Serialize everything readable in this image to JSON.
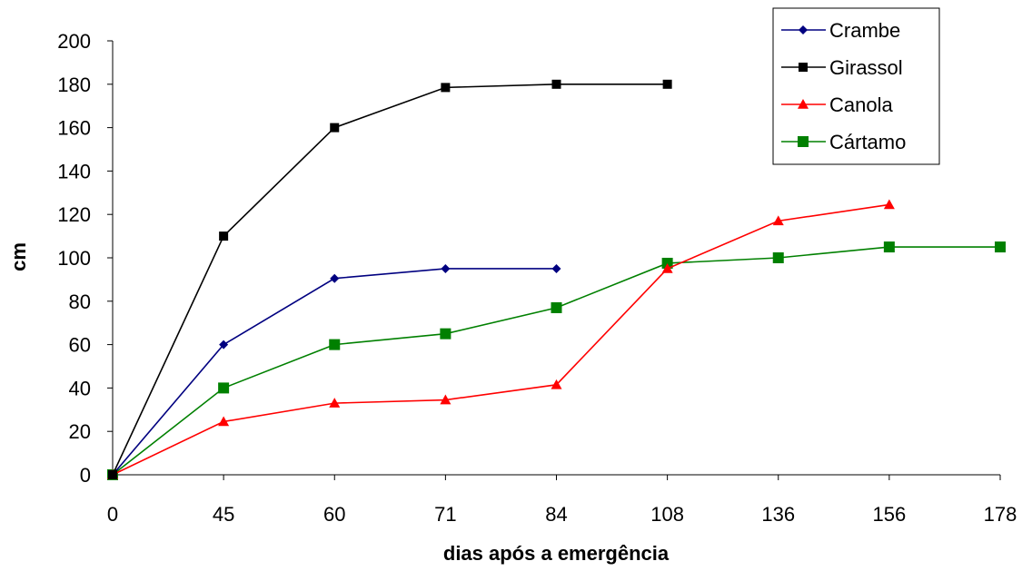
{
  "chart_data": {
    "type": "line",
    "categories": [
      "0",
      "45",
      "60",
      "71",
      "84",
      "108",
      "136",
      "156",
      "178"
    ],
    "xlabel": "dias após a emergência",
    "ylabel": "cm",
    "ylim": [
      0,
      200
    ],
    "yticks": [
      0,
      20,
      40,
      60,
      80,
      100,
      120,
      140,
      160,
      180,
      200
    ],
    "grid": false,
    "legend_position": "top-right",
    "series": [
      {
        "name": "Crambe",
        "color": "#000080",
        "marker": "diamond",
        "values": [
          0,
          60,
          90.5,
          95,
          95,
          null,
          null,
          null,
          null
        ]
      },
      {
        "name": "Girassol",
        "color": "#000000",
        "marker": "square",
        "values": [
          0,
          110,
          160,
          178.5,
          180,
          180,
          null,
          null,
          null
        ]
      },
      {
        "name": "Canola",
        "color": "#ff0000",
        "marker": "triangle",
        "values": [
          0,
          24.5,
          33,
          34.5,
          41.5,
          95,
          117,
          124.5,
          null
        ]
      },
      {
        "name": "Cártamo",
        "color": "#008000",
        "marker": "square",
        "values": [
          0,
          40,
          60,
          65,
          77,
          97.5,
          100,
          105,
          105
        ]
      }
    ]
  }
}
